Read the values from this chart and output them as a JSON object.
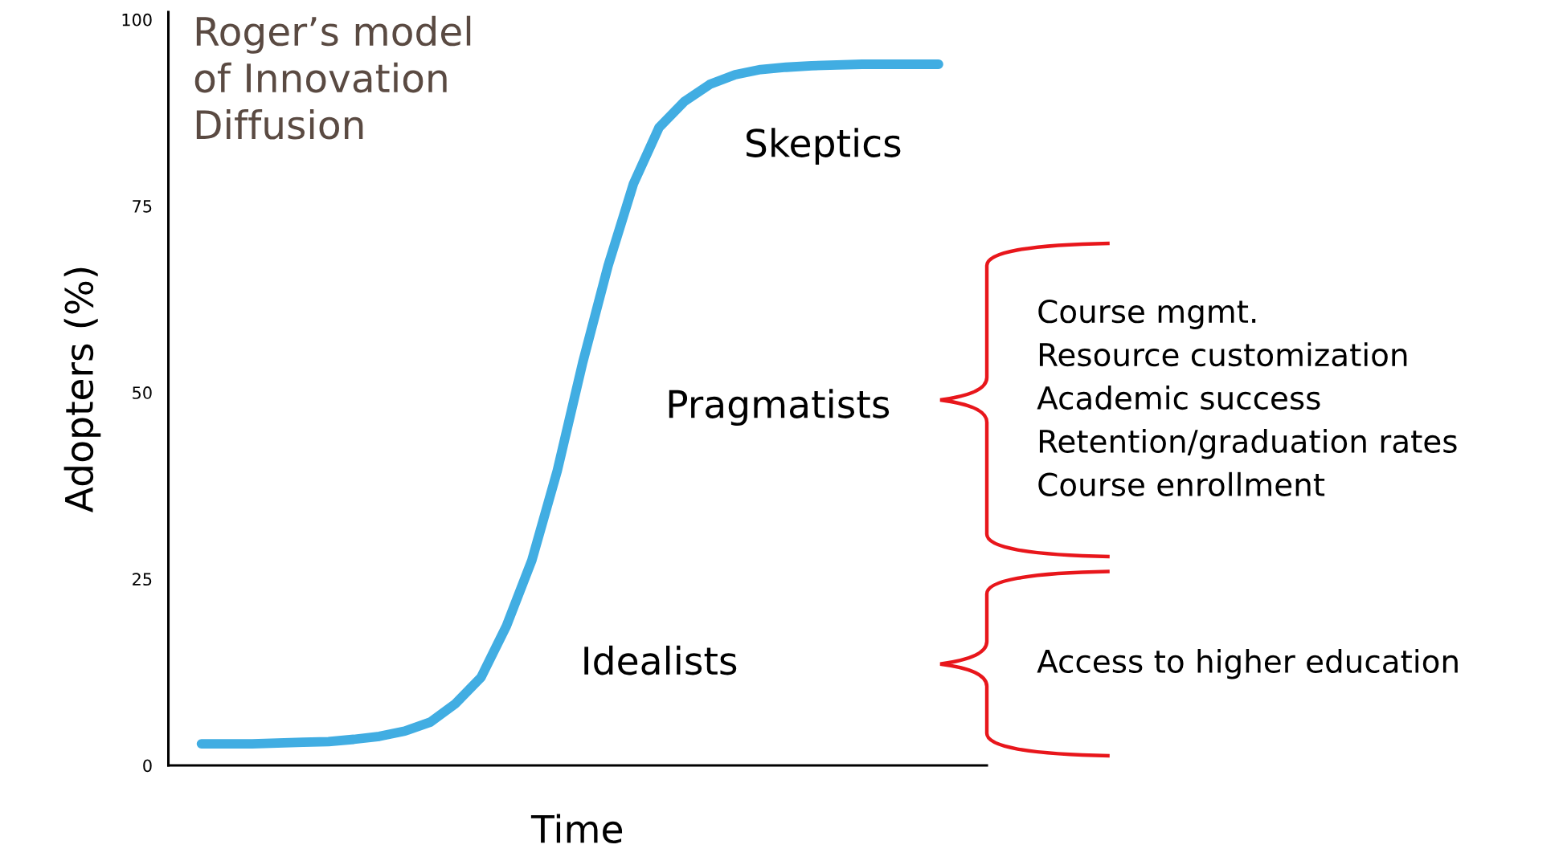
{
  "chart_data": {
    "type": "line",
    "title": "Roger’s model\nof Innovation\nDiffusion",
    "xlabel": "Time",
    "ylabel": "Adopters (%)",
    "categories": [
      null,
      null,
      null,
      null,
      null,
      null,
      null,
      null,
      null,
      null,
      null,
      null,
      null,
      null,
      null,
      null,
      null,
      null,
      null,
      null,
      null,
      null,
      null,
      null,
      null,
      null,
      null,
      null,
      null,
      null
    ],
    "series": [
      {
        "color": "#41ade2",
        "values": [
          2.9,
          2.9,
          2.9,
          3.0,
          3.1,
          3.2,
          3.5,
          3.9,
          4.6,
          5.8,
          8.3,
          11.8,
          18.7,
          27.5,
          39.5,
          54,
          67,
          78,
          85.5,
          89,
          91.3,
          92.6,
          93.3,
          93.6,
          93.8,
          93.9,
          94,
          94,
          94,
          94
        ]
      }
    ],
    "ylim": [
      0,
      101
    ],
    "yticks": [
      0,
      25,
      50,
      75,
      100
    ],
    "grid": false,
    "legend": false,
    "line_style": "solid",
    "annotations": [
      "Skeptics",
      "Pragmatists",
      "Idealists",
      "Course mgmt.\nResource customization\nAcademic success\nRetention/graduation rates\nCourse enrollment",
      "Access to higher education"
    ]
  }
}
